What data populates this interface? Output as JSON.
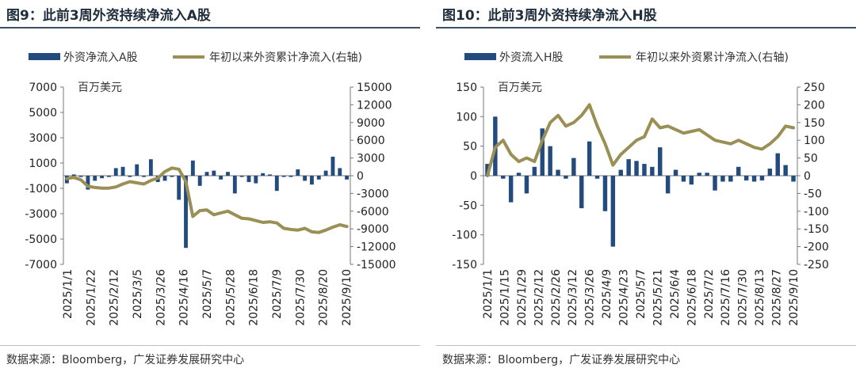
{
  "panels": [
    {
      "title": "图9：此前3周外资持续净流入A股",
      "source": "数据来源：Bloomberg，广发证券发展研究中心",
      "unit": "百万美元",
      "legend_bar": "外资净流入A股",
      "legend_line": "年初以来外资累计净流入(右轴)",
      "colors": {
        "bar": "#244b7e",
        "line": "#9a8f55"
      }
    },
    {
      "title": "图10：此前3周外资持续净流入H股",
      "source": "数据来源：Bloomberg，广发证券发展研究中心",
      "unit": "百万美元",
      "legend_bar": "外资流入H股",
      "legend_line": "年初以来外资累计净流入(右轴)",
      "colors": {
        "bar": "#244b7e",
        "line": "#9a8f55"
      }
    }
  ],
  "chart_data": [
    {
      "type": "bar+line",
      "title": "图9：此前3周外资持续净流入A股",
      "unit": "百万美元",
      "x_tick_labels": [
        "2025/1/1",
        "2025/1/22",
        "2025/2/12",
        "2025/3/5",
        "2025/3/26",
        "2025/4/16",
        "2025/5/7",
        "2025/5/28",
        "2025/6/18",
        "2025/7/9",
        "2025/7/30",
        "2025/8/20",
        "2025/9/10"
      ],
      "y_left": {
        "min": -7000,
        "max": 7000,
        "ticks": [
          7000,
          5000,
          3000,
          1000,
          -1000,
          -3000,
          -5000,
          -7000
        ]
      },
      "y_right": {
        "min": -15000,
        "max": 15000,
        "ticks": [
          15000,
          12000,
          9000,
          6000,
          3000,
          0,
          -3000,
          -6000,
          -9000,
          -12000,
          -15000
        ]
      },
      "series": [
        {
          "name": "外资净流入A股",
          "axis": "left",
          "type": "bar",
          "values": [
            -600,
            100,
            -100,
            -1100,
            -400,
            -200,
            -100,
            600,
            700,
            -100,
            900,
            -100,
            1300,
            -500,
            -400,
            -100,
            -1900,
            -5700,
            1200,
            -800,
            300,
            400,
            -300,
            300,
            -1400,
            -100,
            -500,
            -600,
            200,
            100,
            -1200,
            -100,
            -100,
            500,
            -400,
            -700,
            -300,
            400,
            1500,
            600,
            -300
          ]
        },
        {
          "name": "年初以来外资累计净流入(右轴)",
          "axis": "right",
          "type": "line",
          "values": [
            -500,
            -300,
            -700,
            -1800,
            -2000,
            -2100,
            -2100,
            -1900,
            -1400,
            -1000,
            -1200,
            -1400,
            -800,
            -400,
            700,
            1300,
            1100,
            -1000,
            -6900,
            -5900,
            -5800,
            -6600,
            -6300,
            -6000,
            -6600,
            -7200,
            -7300,
            -7600,
            -7900,
            -7800,
            -8000,
            -8900,
            -9100,
            -9200,
            -8900,
            -9500,
            -9600,
            -9200,
            -8700,
            -8300,
            -8600
          ]
        }
      ]
    },
    {
      "type": "bar+line",
      "title": "图10：此前3周外资持续净流入H股",
      "unit": "百万美元",
      "x_tick_labels": [
        "2025/1/1",
        "2025/1/15",
        "2025/1/29",
        "2025/2/12",
        "2025/2/26",
        "2025/3/12",
        "2025/3/26",
        "2025/4/9",
        "2025/4/23",
        "2025/5/7",
        "2025/5/21",
        "2025/6/4",
        "2025/6/18",
        "2025/7/2",
        "2025/7/16",
        "2025/7/30",
        "2025/8/13",
        "2025/8/27",
        "2025/9/10"
      ],
      "y_left": {
        "min": -150,
        "max": 150,
        "ticks": [
          150,
          100,
          50,
          0,
          -50,
          -100,
          -150
        ]
      },
      "y_right": {
        "min": -250,
        "max": 250,
        "ticks": [
          250,
          200,
          150,
          100,
          50,
          0,
          -50,
          -100,
          -150,
          -200,
          -250
        ]
      },
      "series": [
        {
          "name": "外资流入H股",
          "axis": "left",
          "type": "bar",
          "values": [
            20,
            100,
            -5,
            -45,
            5,
            -30,
            15,
            80,
            50,
            10,
            -5,
            30,
            -55,
            58,
            -5,
            -60,
            -120,
            10,
            28,
            25,
            20,
            15,
            48,
            -30,
            10,
            -10,
            -15,
            5,
            5,
            -25,
            -10,
            -10,
            15,
            -8,
            -10,
            -8,
            12,
            38,
            18,
            -10
          ]
        },
        {
          "name": "年初以来外资累计净流入(右轴)",
          "axis": "right",
          "type": "line",
          "values": [
            0,
            80,
            100,
            60,
            40,
            50,
            40,
            100,
            150,
            170,
            140,
            150,
            170,
            200,
            140,
            90,
            30,
            60,
            80,
            100,
            110,
            160,
            135,
            140,
            130,
            120,
            125,
            130,
            115,
            100,
            95,
            90,
            100,
            90,
            80,
            75,
            90,
            110,
            140,
            135
          ]
        }
      ]
    }
  ]
}
